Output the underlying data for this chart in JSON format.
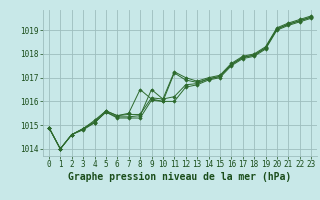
{
  "xlabel": "Graphe pression niveau de la mer (hPa)",
  "x_hours": [
    0,
    1,
    2,
    3,
    4,
    5,
    6,
    7,
    8,
    9,
    10,
    11,
    12,
    13,
    14,
    15,
    16,
    17,
    18,
    19,
    20,
    21,
    22,
    23
  ],
  "series": [
    [
      1014.9,
      1014.0,
      1014.6,
      1014.8,
      1015.1,
      1015.55,
      1015.3,
      1015.3,
      1015.3,
      1016.05,
      1016.0,
      1016.0,
      1016.6,
      1016.7,
      1016.9,
      1017.0,
      1017.5,
      1017.8,
      1017.9,
      1018.2,
      1019.0,
      1019.2,
      1019.35,
      1019.5
    ],
    [
      1014.9,
      1014.0,
      1014.6,
      1014.85,
      1015.2,
      1015.6,
      1015.4,
      1015.5,
      1016.5,
      1016.1,
      1016.0,
      1017.2,
      1016.9,
      1016.8,
      1016.95,
      1017.05,
      1017.55,
      1017.85,
      1017.95,
      1018.25,
      1019.05,
      1019.25,
      1019.4,
      1019.55
    ],
    [
      1014.9,
      1014.0,
      1014.6,
      1014.85,
      1015.1,
      1015.55,
      1015.35,
      1015.35,
      1015.4,
      1016.5,
      1016.1,
      1017.25,
      1017.0,
      1016.85,
      1017.0,
      1017.1,
      1017.6,
      1017.9,
      1018.0,
      1018.3,
      1019.1,
      1019.3,
      1019.45,
      1019.6
    ],
    [
      1014.9,
      1014.0,
      1014.6,
      1014.85,
      1015.15,
      1015.6,
      1015.4,
      1015.45,
      1015.45,
      1016.15,
      1016.1,
      1016.2,
      1016.7,
      1016.75,
      1016.95,
      1017.05,
      1017.55,
      1017.85,
      1017.95,
      1018.25,
      1019.05,
      1019.25,
      1019.4,
      1019.55
    ]
  ],
  "line_color": "#2d6a2d",
  "marker_color": "#2d6a2d",
  "bg_color": "#c8e8e8",
  "grid_color": "#9dbdbd",
  "axis_bg": "#c8e8e8",
  "ylim": [
    1013.7,
    1019.85
  ],
  "yticks": [
    1014,
    1015,
    1016,
    1017,
    1018,
    1019
  ],
  "xticks": [
    0,
    1,
    2,
    3,
    4,
    5,
    6,
    7,
    8,
    9,
    10,
    11,
    12,
    13,
    14,
    15,
    16,
    17,
    18,
    19,
    20,
    21,
    22,
    23
  ],
  "xlabel_color": "#1a4d1a",
  "tick_color": "#1a4d1a",
  "title_fontsize": 7.0,
  "tick_fontsize": 5.5
}
